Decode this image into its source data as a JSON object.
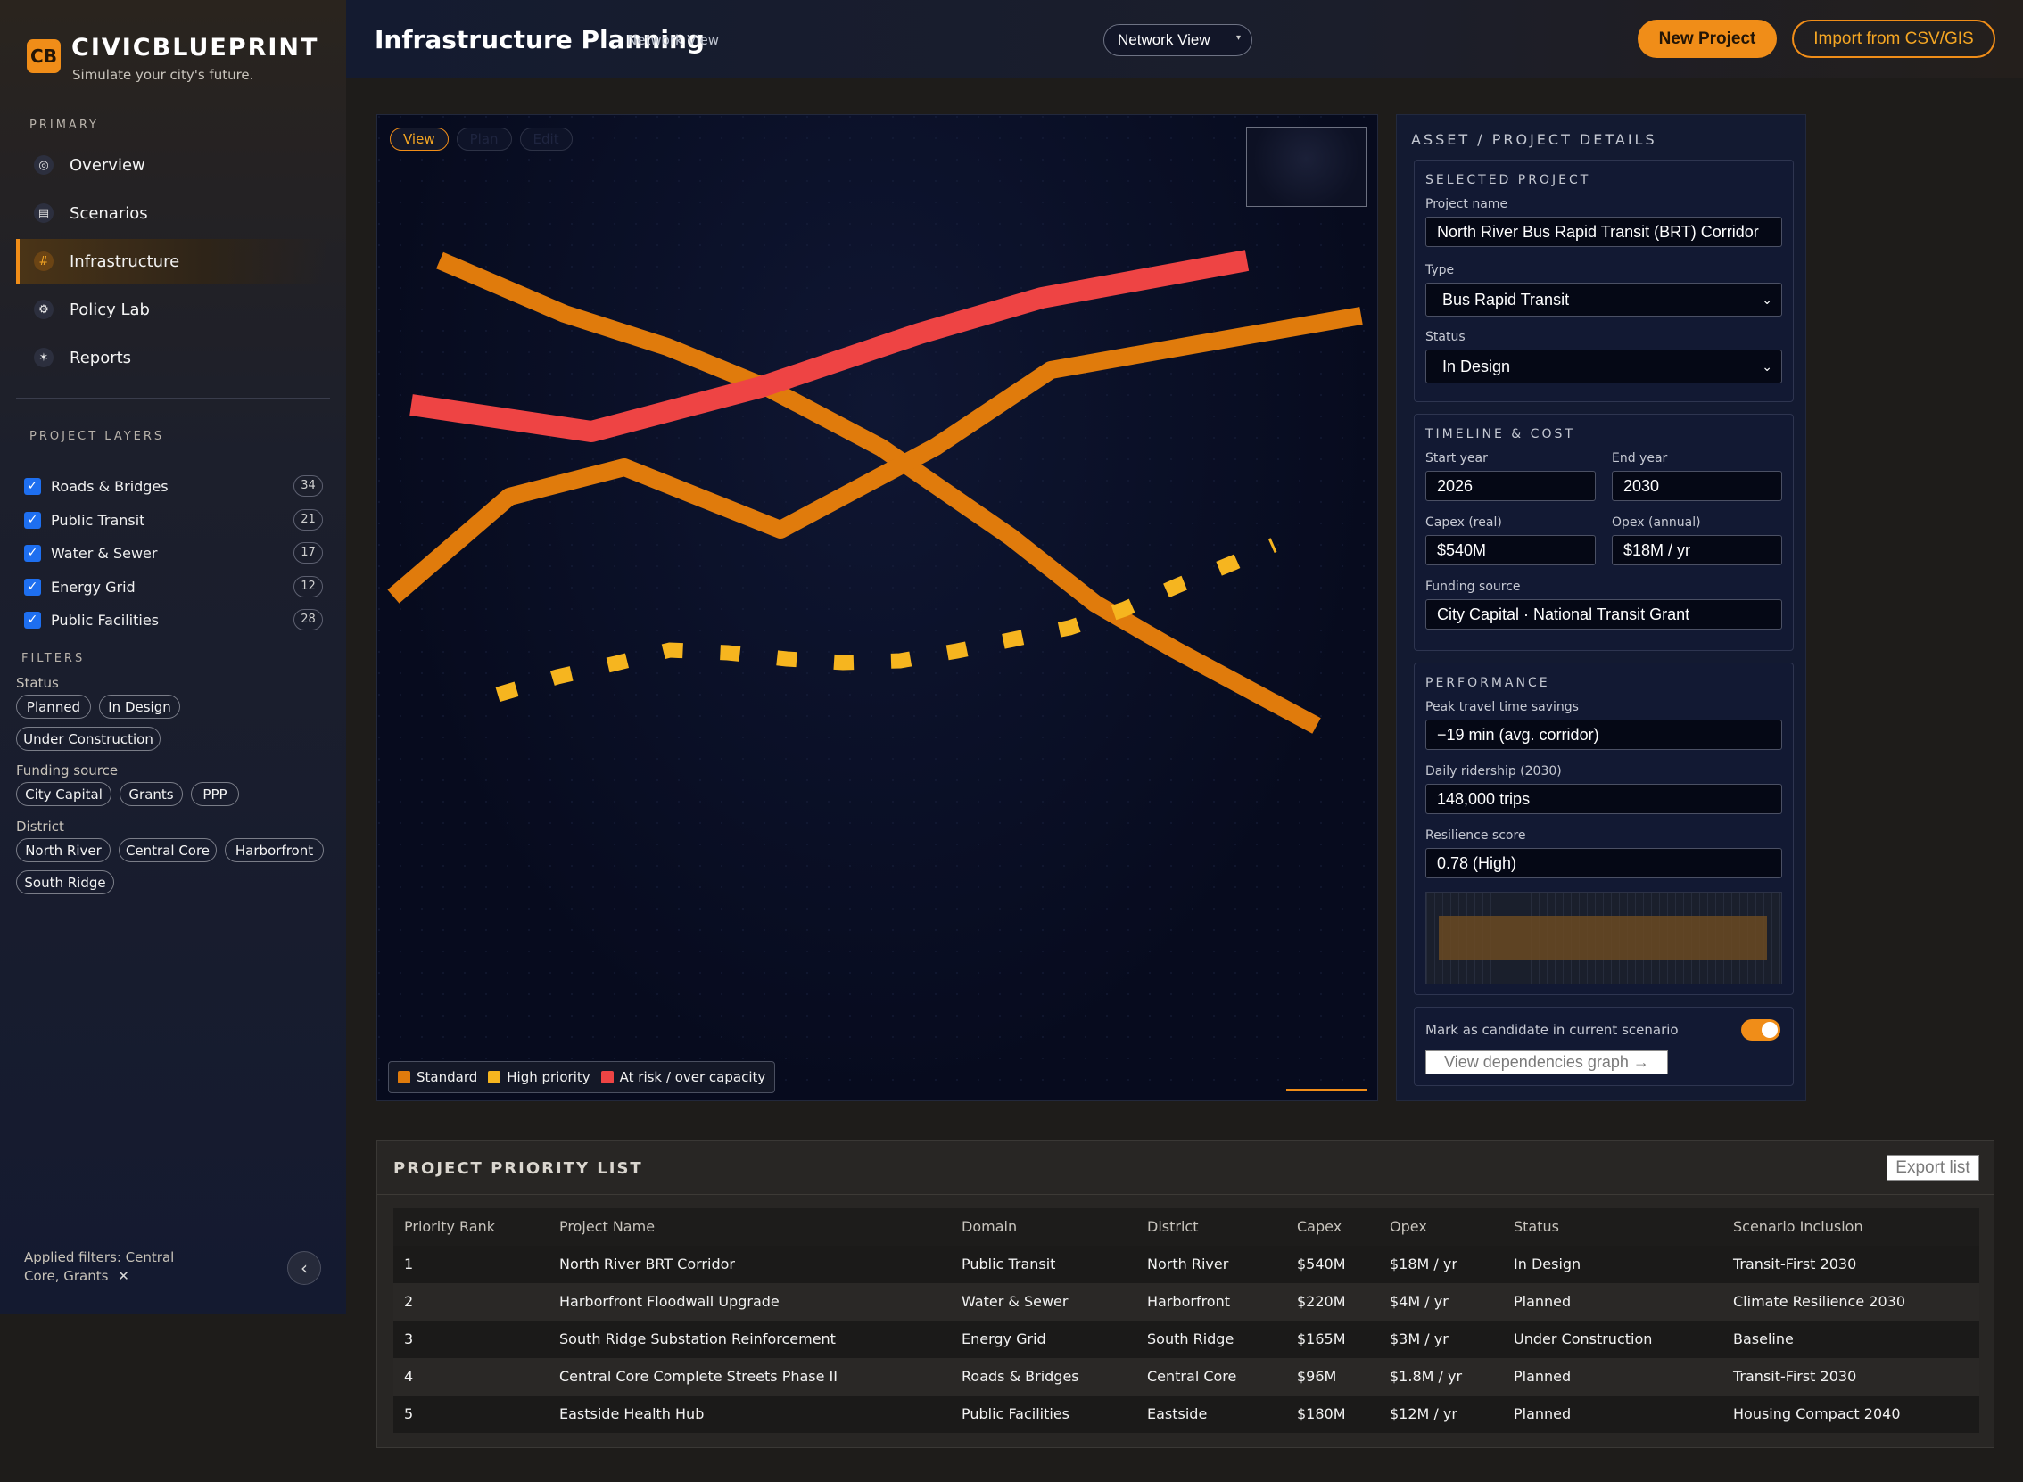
{
  "brand": {
    "logo": "CB",
    "name": "CIVICBLUEPRINT",
    "tagline": "Simulate your city's future."
  },
  "sidebar": {
    "primary_label": "PRIMARY",
    "nav": [
      {
        "label": "Overview",
        "icon": "target-icon"
      },
      {
        "label": "Scenarios",
        "icon": "grid-icon"
      },
      {
        "label": "Infrastructure",
        "icon": "hash-icon",
        "active": true
      },
      {
        "label": "Policy Lab",
        "icon": "gear-icon"
      },
      {
        "label": "Reports",
        "icon": "star-icon"
      }
    ],
    "layers_label": "PROJECT LAYERS",
    "layers": [
      {
        "label": "Roads & Bridges",
        "count": "34",
        "checked": true
      },
      {
        "label": "Public Transit",
        "count": "21",
        "checked": true
      },
      {
        "label": "Water & Sewer",
        "count": "17",
        "checked": true
      },
      {
        "label": "Energy Grid",
        "count": "12",
        "checked": true
      },
      {
        "label": "Public Facilities",
        "count": "28",
        "checked": true
      }
    ],
    "filters_label": "FILTERS",
    "status_label": "Status",
    "status_chips": [
      "Planned",
      "In Design",
      "Under Construction"
    ],
    "funding_label": "Funding source",
    "funding_chips": [
      "City Capital",
      "Grants",
      "PPP"
    ],
    "district_label": "District",
    "district_chips": [
      "North River",
      "Central Core",
      "Harborfront",
      "South Ridge"
    ],
    "applied_filters": "Applied filters: Central Core, Grants",
    "clear_icon": "close-icon",
    "collapse_icon": "chevron-left-icon"
  },
  "topbar": {
    "title": "Infrastructure Planning",
    "subtitle": "Network View",
    "view_select": "Network View",
    "new_project": "New Project",
    "import": "Import from CSV/GIS"
  },
  "map": {
    "tabs": [
      {
        "label": "View",
        "active": true
      },
      {
        "label": "Plan",
        "active": false
      },
      {
        "label": "Edit",
        "active": false
      }
    ],
    "legend": [
      {
        "label": "Standard",
        "color": "#e07b0c"
      },
      {
        "label": "High priority",
        "color": "#f6b51f"
      },
      {
        "label": "At risk / over capacity",
        "color": "#ee4444"
      }
    ]
  },
  "details": {
    "heading": "ASSET / PROJECT DETAILS",
    "selected": {
      "title": "SELECTED PROJECT",
      "name_label": "Project name",
      "name": "North River Bus Rapid Transit (BRT) Corridor",
      "type_label": "Type",
      "type": "Bus Rapid Transit",
      "status_label": "Status",
      "status": "In Design"
    },
    "timeline": {
      "title": "TIMELINE & COST",
      "start_label": "Start year",
      "start": "2026",
      "end_label": "End year",
      "end": "2030",
      "capex_label": "Capex (real)",
      "capex": "$540M",
      "opex_label": "Opex (annual)",
      "opex": "$18M / yr",
      "funding_label": "Funding source",
      "funding": "City Capital · National Transit Grant"
    },
    "performance": {
      "title": "PERFORMANCE",
      "savings_label": "Peak travel time savings",
      "savings": "−19 min (avg. corridor)",
      "ridership_label": "Daily ridership (2030)",
      "ridership": "148,000 trips",
      "resilience_label": "Resilience score",
      "resilience": "0.78 (High)"
    },
    "candidate_label": "Mark as candidate in current scenario",
    "candidate_on": true,
    "dependencies": "View dependencies graph →"
  },
  "table": {
    "title": "PROJECT PRIORITY LIST",
    "export": "Export list",
    "columns": [
      "Priority Rank",
      "Project Name",
      "Domain",
      "District",
      "Capex",
      "Opex",
      "Status",
      "Scenario Inclusion"
    ],
    "rows": [
      [
        "1",
        "North River BRT Corridor",
        "Public Transit",
        "North River",
        "$540M",
        "$18M / yr",
        "In Design",
        "Transit-First 2030"
      ],
      [
        "2",
        "Harborfront Floodwall Upgrade",
        "Water & Sewer",
        "Harborfront",
        "$220M",
        "$4M / yr",
        "Planned",
        "Climate Resilience 2030"
      ],
      [
        "3",
        "South Ridge Substation Reinforcement",
        "Energy Grid",
        "South Ridge",
        "$165M",
        "$3M / yr",
        "Under Construction",
        "Baseline"
      ],
      [
        "4",
        "Central Core Complete Streets Phase II",
        "Roads & Bridges",
        "Central Core",
        "$96M",
        "$1.8M / yr",
        "Planned",
        "Transit-First 2030"
      ],
      [
        "5",
        "Eastside Health Hub",
        "Public Facilities",
        "Eastside",
        "$180M",
        "$12M / yr",
        "Planned",
        "Housing Compact 2040"
      ]
    ]
  }
}
